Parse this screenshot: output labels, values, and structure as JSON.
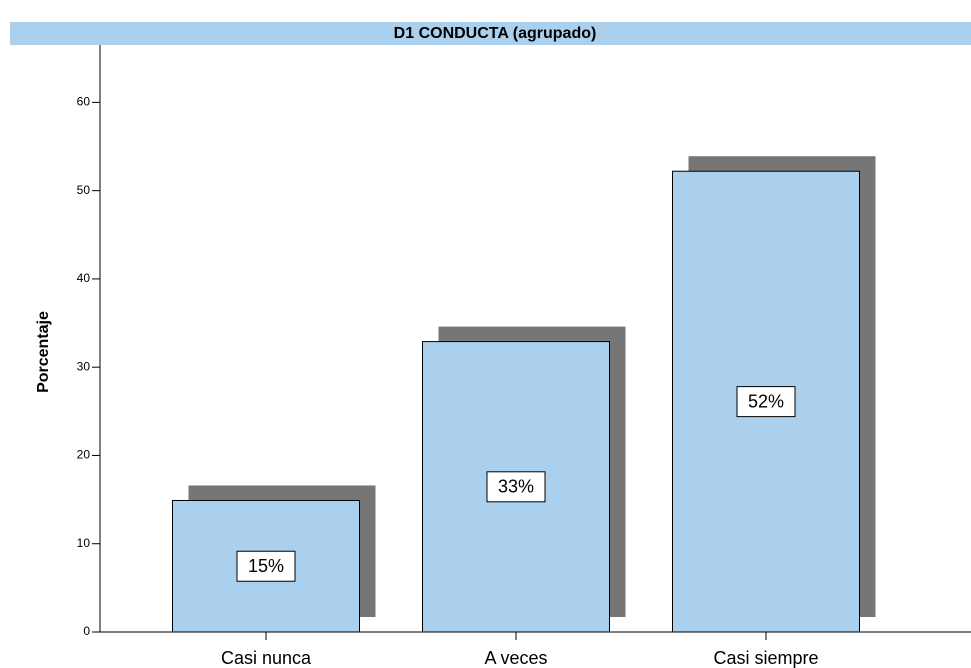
{
  "chart_data": {
    "type": "bar",
    "title": "D1 CONDUCTA (agrupado)",
    "y_label": "Porcentaje",
    "categories": [
      "Casi nunca",
      "A veces",
      "Casi siempre"
    ],
    "values": [
      14.9,
      32.9,
      52.2
    ],
    "value_labels": [
      "15%",
      "33%",
      "52%"
    ],
    "color": "#abd0ee",
    "shadow_color": "#767676",
    "ylim": [
      0,
      66.5
    ],
    "yticks": [
      0,
      10,
      20,
      30,
      40,
      50,
      60
    ]
  }
}
